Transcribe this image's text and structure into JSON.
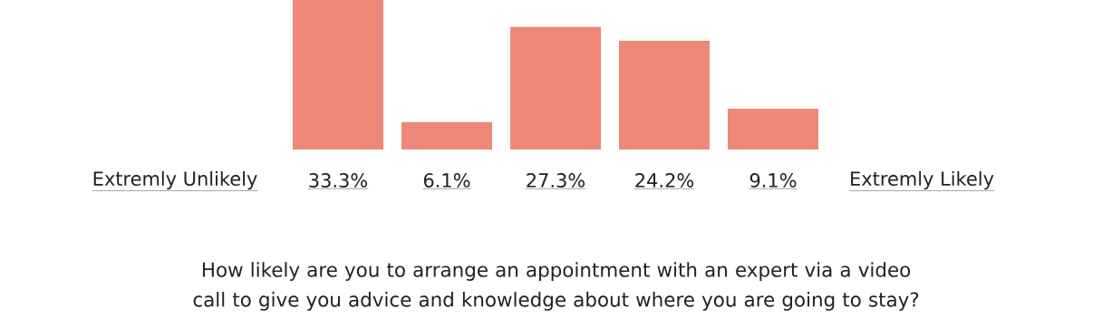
{
  "chart_data": {
    "type": "bar",
    "title": "How likely are you to arrange an appointment with an expert via a video call to give you advice and knowledge about where you are going to stay?",
    "categories": [
      null,
      null,
      null,
      null,
      null
    ],
    "values": [
      33.3,
      6.1,
      27.3,
      24.2,
      9.1
    ],
    "value_labels": [
      "33.3%",
      "6.1%",
      "27.3%",
      "24.2%",
      "9.1%"
    ],
    "color": "#ee8878",
    "annotations": [
      "Extremly Unlikely",
      "Extremly Likely"
    ]
  }
}
